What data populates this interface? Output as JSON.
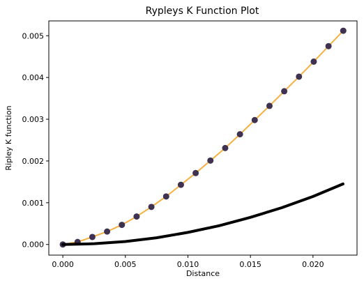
{
  "chart_data": {
    "type": "line",
    "title": "Rypleys K Function Plot",
    "xlabel": "Distance",
    "ylabel": "Ripley K function",
    "xlim": [
      -0.00112,
      0.02352
    ],
    "ylim": [
      -0.000255,
      0.005355
    ],
    "xticks": [
      "0.000",
      "0.005",
      "0.010",
      "0.015",
      "0.020"
    ],
    "xtick_values": [
      0,
      0.005,
      0.01,
      0.015,
      0.02
    ],
    "yticks": [
      "0.000",
      "0.001",
      "0.002",
      "0.003",
      "0.004",
      "0.005"
    ],
    "ytick_values": [
      0,
      0.001,
      0.002,
      0.003,
      0.004,
      0.005
    ],
    "grid": false,
    "series": [
      {
        "style": "line+markers",
        "line_color": "#f5b042",
        "marker_color": "#3f3150",
        "x": [
          0.0,
          0.00118,
          0.00236,
          0.00354,
          0.00472,
          0.0059,
          0.00708,
          0.00826,
          0.00944,
          0.01062,
          0.0118,
          0.01298,
          0.01416,
          0.01534,
          0.01652,
          0.0177,
          0.01888,
          0.02006,
          0.02124,
          0.02242
        ],
        "y": [
          0.0,
          6e-05,
          0.00018,
          0.00031,
          0.00047,
          0.00067,
          0.0009,
          0.00115,
          0.00143,
          0.00171,
          0.00201,
          0.00231,
          0.00264,
          0.00298,
          0.00332,
          0.00367,
          0.00402,
          0.00438,
          0.00475,
          0.00512
        ]
      },
      {
        "style": "thick-line",
        "line_color": "#000000",
        "x": [
          0.0,
          0.0025,
          0.005,
          0.0075,
          0.01,
          0.0125,
          0.015,
          0.0175,
          0.02,
          0.0224
        ],
        "y": [
          0.0,
          1.8e-05,
          7e-05,
          0.00016,
          0.00029,
          0.00045,
          0.00065,
          0.00088,
          0.00115,
          0.00145
        ]
      }
    ]
  }
}
